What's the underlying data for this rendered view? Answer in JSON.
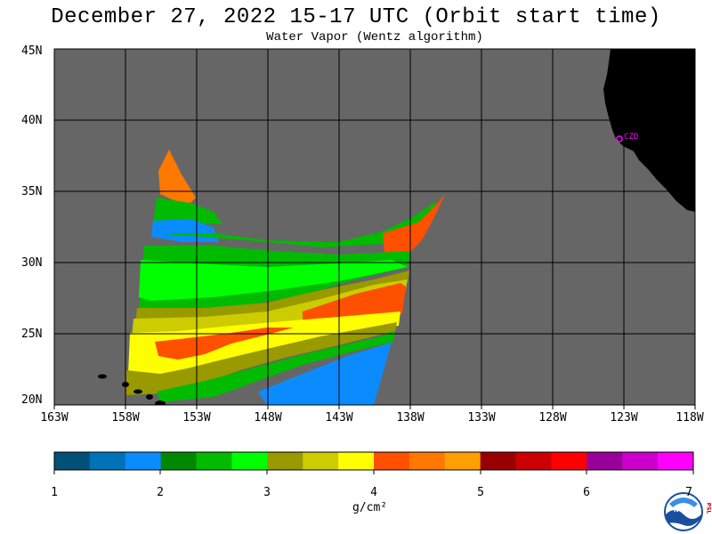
{
  "title": "December 27, 2022  15-17 UTC  (Orbit start time)",
  "subtitle": "Water Vapor (Wentz algorithm)",
  "lat_labels": [
    "45N",
    "40N",
    "35N",
    "30N",
    "25N",
    "20N"
  ],
  "lon_labels": [
    "163W",
    "158W",
    "153W",
    "148W",
    "143W",
    "138W",
    "133W",
    "128W",
    "123W",
    "118W"
  ],
  "station_label": "CZD",
  "colorbar": {
    "ticks": [
      "1",
      "2",
      "3",
      "4",
      "5",
      "6",
      "7"
    ],
    "units": "g/cm²",
    "colors": [
      "#00507a",
      "#0073b8",
      "#0a8cff",
      "#008800",
      "#00bb00",
      "#00ff00",
      "#999900",
      "#cccc00",
      "#ffff00",
      "#ff5000",
      "#ff7800",
      "#ffa000",
      "#990000",
      "#cc0000",
      "#ff0000",
      "#990099",
      "#cc00cc",
      "#ff00ff"
    ]
  },
  "colors": {
    "land": "#000000",
    "no_data": "#666666",
    "grid": "#000000",
    "station": "#ff00ff"
  },
  "logo_text": {
    "noaa": "NOAA",
    "psl": "PSL"
  }
}
